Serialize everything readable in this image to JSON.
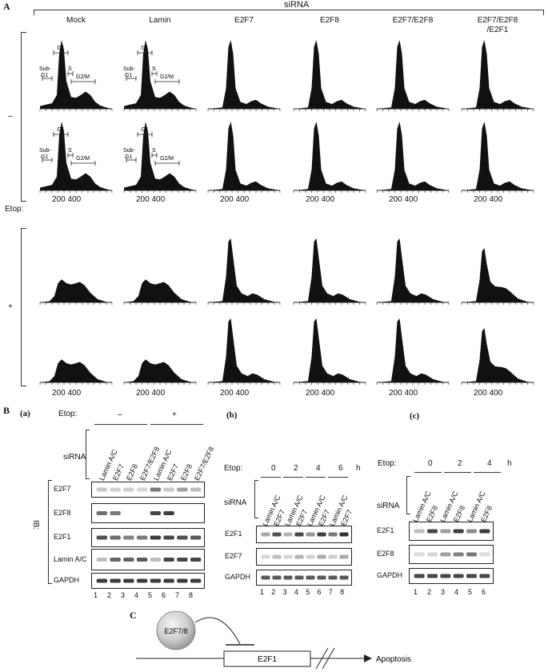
{
  "panel_a": {
    "letter": "A",
    "top_label": "siRNA",
    "columns": [
      "Mock",
      "Lamin",
      "E2F7",
      "E2F8",
      "E2F7/E2F8",
      "E2F7/E2F8\n/E2F1"
    ],
    "etop_label": "Etop:",
    "etop_minus": "–",
    "etop_plus": "+",
    "x_ticks": "200 400",
    "phase_labels": {
      "sub_g1": "Sub-\nG1",
      "g1": "G1",
      "s": "S",
      "g2m": "G2/M"
    },
    "histogram_profiles": {
      "untreated_mock_lamin": [
        [
          0,
          0.04
        ],
        [
          0.05,
          0.06
        ],
        [
          0.1,
          0.08
        ],
        [
          0.14,
          0.2
        ],
        [
          0.16,
          0.8
        ],
        [
          0.18,
          1.0
        ],
        [
          0.2,
          0.85
        ],
        [
          0.22,
          0.4
        ],
        [
          0.26,
          0.17
        ],
        [
          0.3,
          0.16
        ],
        [
          0.34,
          0.2
        ],
        [
          0.38,
          0.25
        ],
        [
          0.42,
          0.2
        ],
        [
          0.46,
          0.1
        ],
        [
          0.5,
          0.05
        ],
        [
          0.55,
          0.02
        ],
        [
          0.6,
          0
        ]
      ],
      "untreated_knockdown": [
        [
          0,
          0
        ],
        [
          0.12,
          0.02
        ],
        [
          0.15,
          0.3
        ],
        [
          0.17,
          0.9
        ],
        [
          0.19,
          1.0
        ],
        [
          0.21,
          0.8
        ],
        [
          0.23,
          0.3
        ],
        [
          0.27,
          0.1
        ],
        [
          0.32,
          0.07
        ],
        [
          0.36,
          0.11
        ],
        [
          0.4,
          0.13
        ],
        [
          0.44,
          0.08
        ],
        [
          0.5,
          0.03
        ],
        [
          0.6,
          0
        ]
      ],
      "etop_mock_lamin": [
        [
          0,
          0
        ],
        [
          0.08,
          0.02
        ],
        [
          0.12,
          0.1
        ],
        [
          0.15,
          0.3
        ],
        [
          0.18,
          0.36
        ],
        [
          0.22,
          0.3
        ],
        [
          0.26,
          0.28
        ],
        [
          0.3,
          0.3
        ],
        [
          0.33,
          0.32
        ],
        [
          0.37,
          0.27
        ],
        [
          0.42,
          0.15
        ],
        [
          0.48,
          0.05
        ],
        [
          0.55,
          0.01
        ],
        [
          0.6,
          0
        ]
      ],
      "etop_knockdown": [
        [
          0,
          0
        ],
        [
          0.12,
          0.02
        ],
        [
          0.15,
          0.4
        ],
        [
          0.17,
          0.95
        ],
        [
          0.19,
          1.0
        ],
        [
          0.21,
          0.7
        ],
        [
          0.24,
          0.26
        ],
        [
          0.28,
          0.14
        ],
        [
          0.33,
          0.1
        ],
        [
          0.37,
          0.14
        ],
        [
          0.41,
          0.12
        ],
        [
          0.47,
          0.05
        ],
        [
          0.55,
          0.01
        ],
        [
          0.6,
          0
        ]
      ],
      "etop_triple": [
        [
          0,
          0
        ],
        [
          0.12,
          0.02
        ],
        [
          0.15,
          0.35
        ],
        [
          0.17,
          0.8
        ],
        [
          0.19,
          0.85
        ],
        [
          0.21,
          0.6
        ],
        [
          0.24,
          0.32
        ],
        [
          0.28,
          0.25
        ],
        [
          0.33,
          0.24
        ],
        [
          0.37,
          0.22
        ],
        [
          0.41,
          0.16
        ],
        [
          0.47,
          0.06
        ],
        [
          0.55,
          0.01
        ],
        [
          0.6,
          0
        ]
      ]
    }
  },
  "panel_b": {
    "letter": "B",
    "sub_a": {
      "letter": "(a)",
      "etop_label": "Etop:",
      "etop_minus": "–",
      "etop_plus": "+",
      "sirna_label": "siRNA",
      "lanes_sirna": [
        "Lamin A/C",
        "E2F7",
        "E2F8",
        "E2F7/E2F8",
        "Lamin A/C",
        "E2F7",
        "E2F8",
        "E2F7/E2F8"
      ],
      "ib_label": "IB:",
      "rows": [
        "E2F7",
        "E2F8",
        "E2F1",
        "Lamin A/C",
        "GAPDH"
      ],
      "lane_numbers": [
        "1",
        "2",
        "3",
        "4",
        "5",
        "6",
        "7",
        "8"
      ]
    },
    "sub_b": {
      "letter": "(b)",
      "etop_label": "Etop:",
      "timepoints": [
        "0",
        "2",
        "4",
        "6"
      ],
      "unit": "h",
      "sirna_label": "siRNA",
      "lanes_sirna": [
        "Lamin A/C",
        "E2F7",
        "Lamin A/C",
        "E2F7",
        "Lamin A/C",
        "E2F7",
        "Lamin A/C",
        "E2F7"
      ],
      "rows": [
        "E2F1",
        "E2F7",
        "GAPDH"
      ],
      "lane_numbers": [
        "1",
        "2",
        "3",
        "4",
        "5",
        "6",
        "7",
        "8"
      ]
    },
    "sub_c": {
      "letter": "(c)",
      "etop_label": "Etop:",
      "timepoints": [
        "0",
        "2",
        "4"
      ],
      "unit": "h",
      "sirna_label": "siRNA",
      "lanes_sirna": [
        "Lamin A/C",
        "E2F8",
        "Lamin A/C",
        "E2F8",
        "Lamin A/C",
        "E2F8"
      ],
      "rows": [
        "E2F1",
        "E2F8",
        "GAPDH"
      ],
      "lane_numbers": [
        "1",
        "2",
        "3",
        "4",
        "5",
        "6"
      ]
    }
  },
  "panel_c": {
    "letter": "C",
    "repressor": "E2F7/8",
    "gene": "E2F1",
    "outcome": "Apoptosis"
  }
}
